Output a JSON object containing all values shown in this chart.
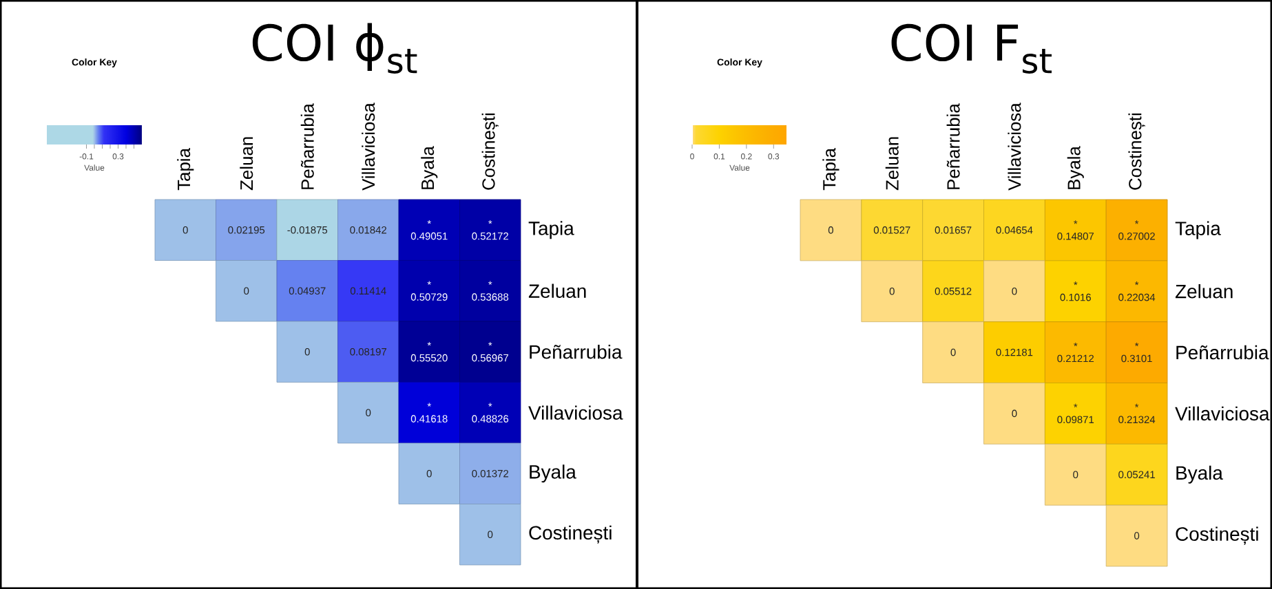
{
  "chart_data": [
    {
      "type": "heatmap",
      "title": "COI ϕ$_{st}$",
      "legend_title": "Color Key",
      "clabel": "Value",
      "categories": [
        "Tapia",
        "Zeluan",
        "Peñarrubia",
        "Villaviciosa",
        "Byala",
        "Costinești"
      ],
      "y_categories": [
        "Tapia",
        "Zeluan",
        "Peñarrubia",
        "Villaviciosa",
        "Byala",
        "Costinești"
      ],
      "cells": [
        [
          0,
          0.02195,
          -0.01875,
          0.01842,
          0.49051,
          0.52172
        ],
        [
          null,
          0,
          0.04937,
          0.11414,
          0.50729,
          0.53688
        ],
        [
          null,
          null,
          0,
          0.08197,
          0.5552,
          0.56967
        ],
        [
          null,
          null,
          null,
          0,
          0.41618,
          0.48826
        ],
        [
          null,
          null,
          null,
          null,
          0,
          0.01372
        ],
        [
          null,
          null,
          null,
          null,
          null,
          0
        ]
      ],
      "cell_labels": [
        [
          "0",
          "0.02195",
          "-0.01875",
          "0.01842",
          "* 0.49051",
          "* 0.52172"
        ],
        [
          null,
          "0",
          "0.04937",
          "0.11414",
          "* 0.50729",
          "* 0.53688"
        ],
        [
          null,
          null,
          "0",
          "0.08197",
          "* 0.55520",
          "* 0.56967"
        ],
        [
          null,
          null,
          null,
          "0",
          "* 0.41618",
          "* 0.48826"
        ],
        [
          null,
          null,
          null,
          null,
          "0",
          "0.01372"
        ],
        [
          null,
          null,
          null,
          null,
          null,
          "0"
        ]
      ],
      "clim": [
        -0.6,
        0.6
      ],
      "cticks": [
        -0.1,
        {
          "value": 0,
          "label": null
        },
        {
          "value": 0.1,
          "label": null
        },
        {
          "value": 0.2,
          "label": null
        },
        0.3,
        {
          "value": 0.4,
          "label": null
        },
        {
          "value": 0.5,
          "label": null
        }
      ]
    },
    {
      "type": "heatmap",
      "title": "COI F$_{st}$",
      "legend_title": "Color Key",
      "clabel": "Value",
      "categories": [
        "Tapia",
        "Zeluan",
        "Peñarrubia",
        "Villaviciosa",
        "Byala",
        "Costinești"
      ],
      "y_categories": [
        "Tapia",
        "Zeluan",
        "Peñarrubia",
        "Villaviciosa",
        "Byala",
        "Costinești"
      ],
      "cells": [
        [
          0,
          0.01527,
          0.01657,
          0.04654,
          0.14807,
          0.27002
        ],
        [
          null,
          0,
          0.05512,
          0,
          0.1016,
          0.22034
        ],
        [
          null,
          null,
          0,
          0.12181,
          0.21212,
          0.3101
        ],
        [
          null,
          null,
          null,
          0,
          0.09871,
          0.21324
        ],
        [
          null,
          null,
          null,
          null,
          0,
          0.05241
        ],
        [
          null,
          null,
          null,
          null,
          null,
          0
        ]
      ],
      "cell_labels": [
        [
          "0",
          "0.01527",
          "0.01657",
          "0.04654",
          "* 0.14807",
          "* 0.27002"
        ],
        [
          null,
          "0",
          "0.05512",
          "0",
          "* 0.1016",
          "* 0.22034"
        ],
        [
          null,
          null,
          "0",
          "0.12181",
          "* 0.21212",
          "* 0.3101"
        ],
        [
          null,
          null,
          null,
          "0",
          "* 0.09871",
          "* 0.21324"
        ],
        [
          null,
          null,
          null,
          null,
          "0",
          "0.05241"
        ],
        [
          null,
          null,
          null,
          null,
          null,
          "0"
        ]
      ],
      "clim": [
        0,
        0.35
      ],
      "cticks": [
        0,
        0.1,
        0.2,
        0.3
      ]
    }
  ]
}
